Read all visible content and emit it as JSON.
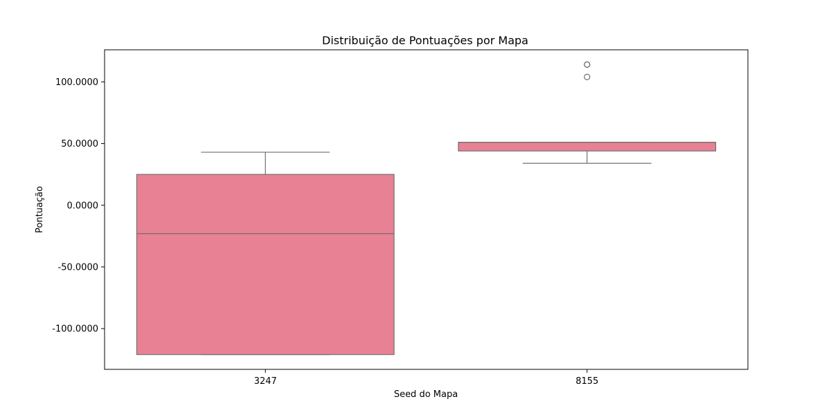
{
  "chart_data": {
    "type": "box",
    "title": "Distribuição de Pontuações por Mapa",
    "xlabel": "Seed do Mapa",
    "ylabel": "Pontuação",
    "categories": [
      "3247",
      "8155"
    ],
    "ylim": [
      -133,
      126
    ],
    "yticks": [
      -100,
      -50,
      0,
      50,
      100
    ],
    "ytick_labels": [
      "-100.0000",
      "-50.0000",
      "0.0000",
      "50.0000",
      "100.0000"
    ],
    "grid": false,
    "boxes": [
      {
        "category": "3247",
        "whisker_low": -121,
        "q1": -121,
        "median": -23,
        "q3": 25,
        "whisker_high": 43,
        "outliers": []
      },
      {
        "category": "8155",
        "whisker_low": 34,
        "q1": 44,
        "median": 51,
        "q3": 51,
        "whisker_high": 51,
        "outliers": [
          104,
          114,
          114
        ]
      }
    ],
    "colors": {
      "box_fill": "#e88194",
      "line": "#6f6f6f"
    }
  }
}
